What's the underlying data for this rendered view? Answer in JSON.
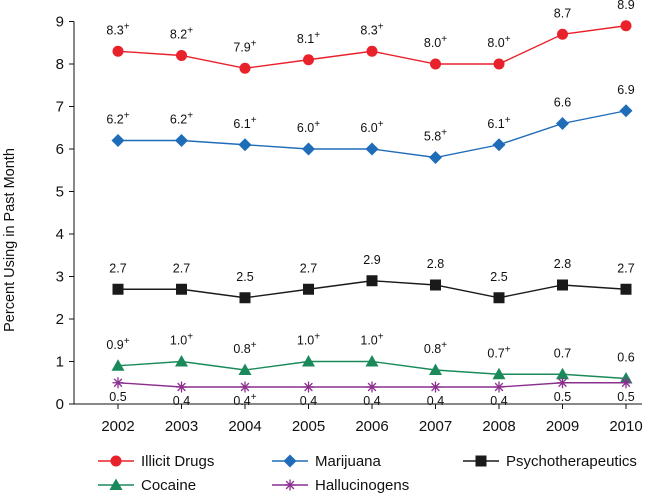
{
  "chart_data": {
    "type": "line",
    "title": "",
    "xlabel": "",
    "ylabel": "Percent Using in Past Month",
    "ylim": [
      0,
      9
    ],
    "yticks": [
      "0",
      "1",
      "2",
      "3",
      "4",
      "5",
      "6",
      "7",
      "8",
      "9"
    ],
    "categories": [
      "2002",
      "2003",
      "2004",
      "2005",
      "2006",
      "2007",
      "2008",
      "2009",
      "2010"
    ],
    "grid": false,
    "legend_position": "bottom",
    "series": [
      {
        "name": "Illicit Drugs",
        "color": "#e8212b",
        "marker": "circle",
        "values": [
          8.3,
          8.2,
          7.9,
          8.1,
          8.3,
          8.0,
          8.0,
          8.7,
          8.9
        ],
        "labels": [
          "8.3",
          "8.2",
          "7.9",
          "8.1",
          "8.3",
          "8.0",
          "8.0",
          "8.7",
          "8.9"
        ],
        "plus": [
          true,
          true,
          true,
          true,
          true,
          true,
          true,
          false,
          false
        ],
        "label_side": "above"
      },
      {
        "name": "Marijuana",
        "color": "#1f6db8",
        "marker": "diamond",
        "values": [
          6.2,
          6.2,
          6.1,
          6.0,
          6.0,
          5.8,
          6.1,
          6.6,
          6.9
        ],
        "labels": [
          "6.2",
          "6.2",
          "6.1",
          "6.0",
          "6.0",
          "5.8",
          "6.1",
          "6.6",
          "6.9"
        ],
        "plus": [
          true,
          true,
          true,
          true,
          true,
          true,
          true,
          false,
          false
        ],
        "label_side": "above"
      },
      {
        "name": "Psychotherapeutics",
        "color": "#1a1a1a",
        "marker": "square",
        "values": [
          2.7,
          2.7,
          2.5,
          2.7,
          2.9,
          2.8,
          2.5,
          2.8,
          2.7
        ],
        "labels": [
          "2.7",
          "2.7",
          "2.5",
          "2.7",
          "2.9",
          "2.8",
          "2.5",
          "2.8",
          "2.7"
        ],
        "plus": [
          false,
          false,
          false,
          false,
          false,
          false,
          false,
          false,
          false
        ],
        "label_side": "above"
      },
      {
        "name": "Cocaine",
        "color": "#1a8a5a",
        "marker": "triangle",
        "values": [
          0.9,
          1.0,
          0.8,
          1.0,
          1.0,
          0.8,
          0.7,
          0.7,
          0.6
        ],
        "labels": [
          "0.9",
          "1.0",
          "0.8",
          "1.0",
          "1.0",
          "0.8",
          "0.7",
          "0.7",
          "0.6"
        ],
        "plus": [
          true,
          true,
          true,
          true,
          true,
          true,
          true,
          false,
          false
        ],
        "label_side": "above"
      },
      {
        "name": "Hallucinogens",
        "color": "#8b2f8f",
        "marker": "asterisk",
        "values": [
          0.5,
          0.4,
          0.4,
          0.4,
          0.4,
          0.4,
          0.4,
          0.5,
          0.5
        ],
        "labels": [
          "0.5",
          "0.4",
          "0.4",
          "0.4",
          "0.4",
          "0.4",
          "0.4",
          "0.5",
          "0.5"
        ],
        "plus": [
          false,
          false,
          true,
          false,
          false,
          false,
          false,
          false,
          false
        ],
        "label_side": "below"
      }
    ],
    "plus_symbol": "+",
    "legend_order": [
      "Illicit Drugs",
      "Marijuana",
      "Psychotherapeutics",
      "Cocaine",
      "Hallucinogens"
    ]
  }
}
